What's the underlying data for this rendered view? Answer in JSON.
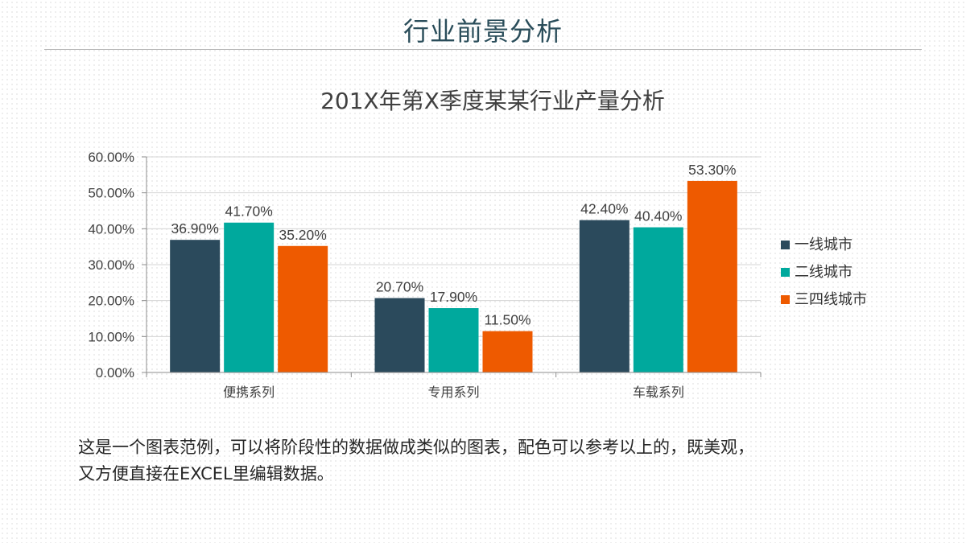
{
  "header": {
    "title": "行业前景分析"
  },
  "description": {
    "line1": "这是一个图表范例，可以将阶段性的数据做成类似的图表，配色可以参考以上的，既美观，",
    "line2": "又方便直接在EXCEL里编辑数据。"
  },
  "chart_data": {
    "type": "bar",
    "title": "201X年第X季度某某行业产量分析",
    "categories": [
      "便携系列",
      "专用系列",
      "车载系列"
    ],
    "series": [
      {
        "name": "一线城市",
        "values": [
          36.9,
          20.7,
          42.4
        ],
        "labels": [
          "36.90%",
          "20.70%",
          "42.40%"
        ],
        "color": "#2b4a5c"
      },
      {
        "name": "二线城市",
        "values": [
          41.7,
          17.9,
          40.4
        ],
        "labels": [
          "41.70%",
          "17.90%",
          "40.40%"
        ],
        "color": "#00a99d"
      },
      {
        "name": "三四线城市",
        "values": [
          35.2,
          11.5,
          53.3
        ],
        "labels": [
          "35.20%",
          "11.50%",
          "53.30%"
        ],
        "color": "#ee5a00"
      }
    ],
    "y_ticks": [
      "0.00%",
      "10.00%",
      "20.00%",
      "30.00%",
      "40.00%",
      "50.00%",
      "60.00%"
    ],
    "ylim": [
      0,
      60
    ],
    "grid": true,
    "legend": "right"
  }
}
